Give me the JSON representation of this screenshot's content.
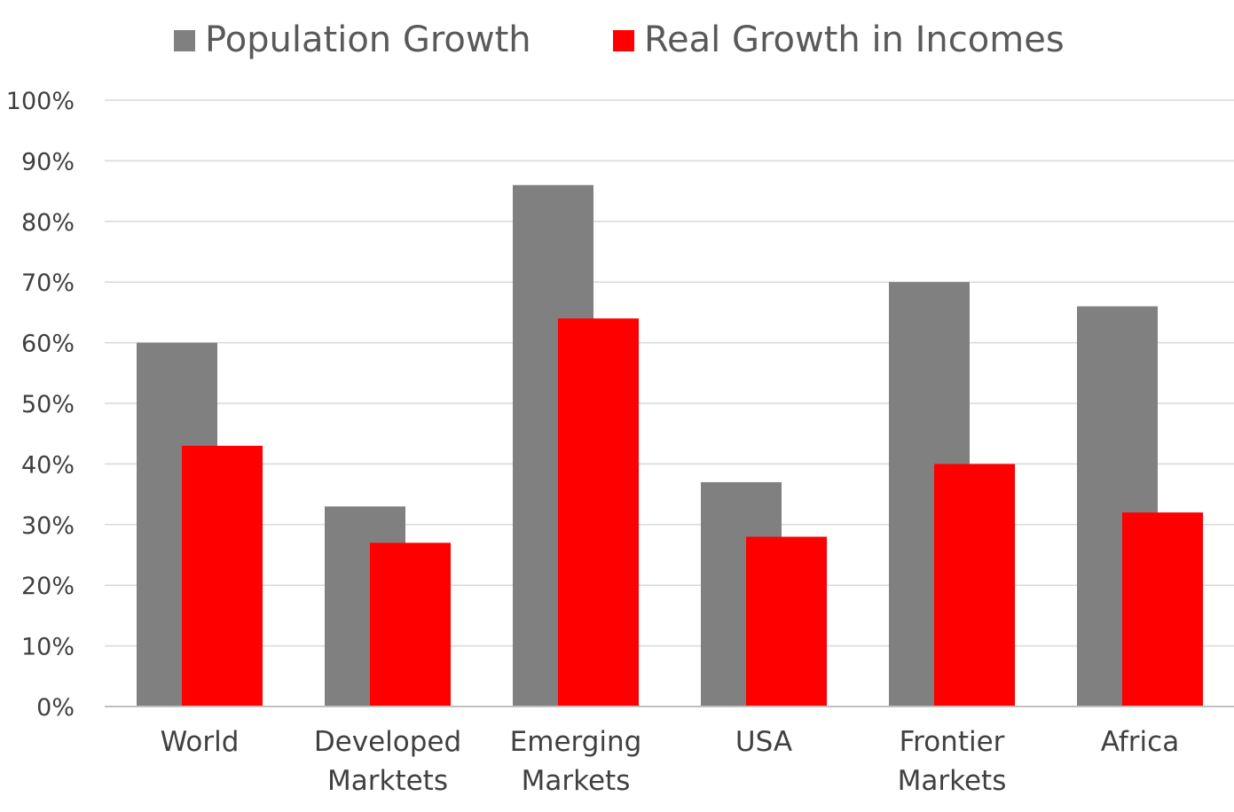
{
  "chart_data": {
    "type": "bar",
    "categories": [
      [
        "World"
      ],
      [
        "Developed",
        "Marktets"
      ],
      [
        "Emerging",
        "Markets"
      ],
      [
        "USA"
      ],
      [
        "Frontier",
        "Markets"
      ],
      [
        "Africa"
      ]
    ],
    "series": [
      {
        "name": "Population Growth",
        "color": "#808080",
        "values": [
          60,
          33,
          86,
          37,
          70,
          66
        ]
      },
      {
        "name": "Real Growth in Incomes",
        "color": "#ff0000",
        "values": [
          43,
          27,
          64,
          28,
          40,
          32
        ]
      }
    ],
    "yticks": [
      "0%",
      "10%",
      "20%",
      "30%",
      "40%",
      "50%",
      "60%",
      "70%",
      "80%",
      "90%",
      "100%"
    ],
    "ylim": [
      0,
      100
    ],
    "y_unit": "%",
    "grid": true,
    "legend_position": "top-center",
    "title": "",
    "xlabel": "",
    "ylabel": ""
  }
}
